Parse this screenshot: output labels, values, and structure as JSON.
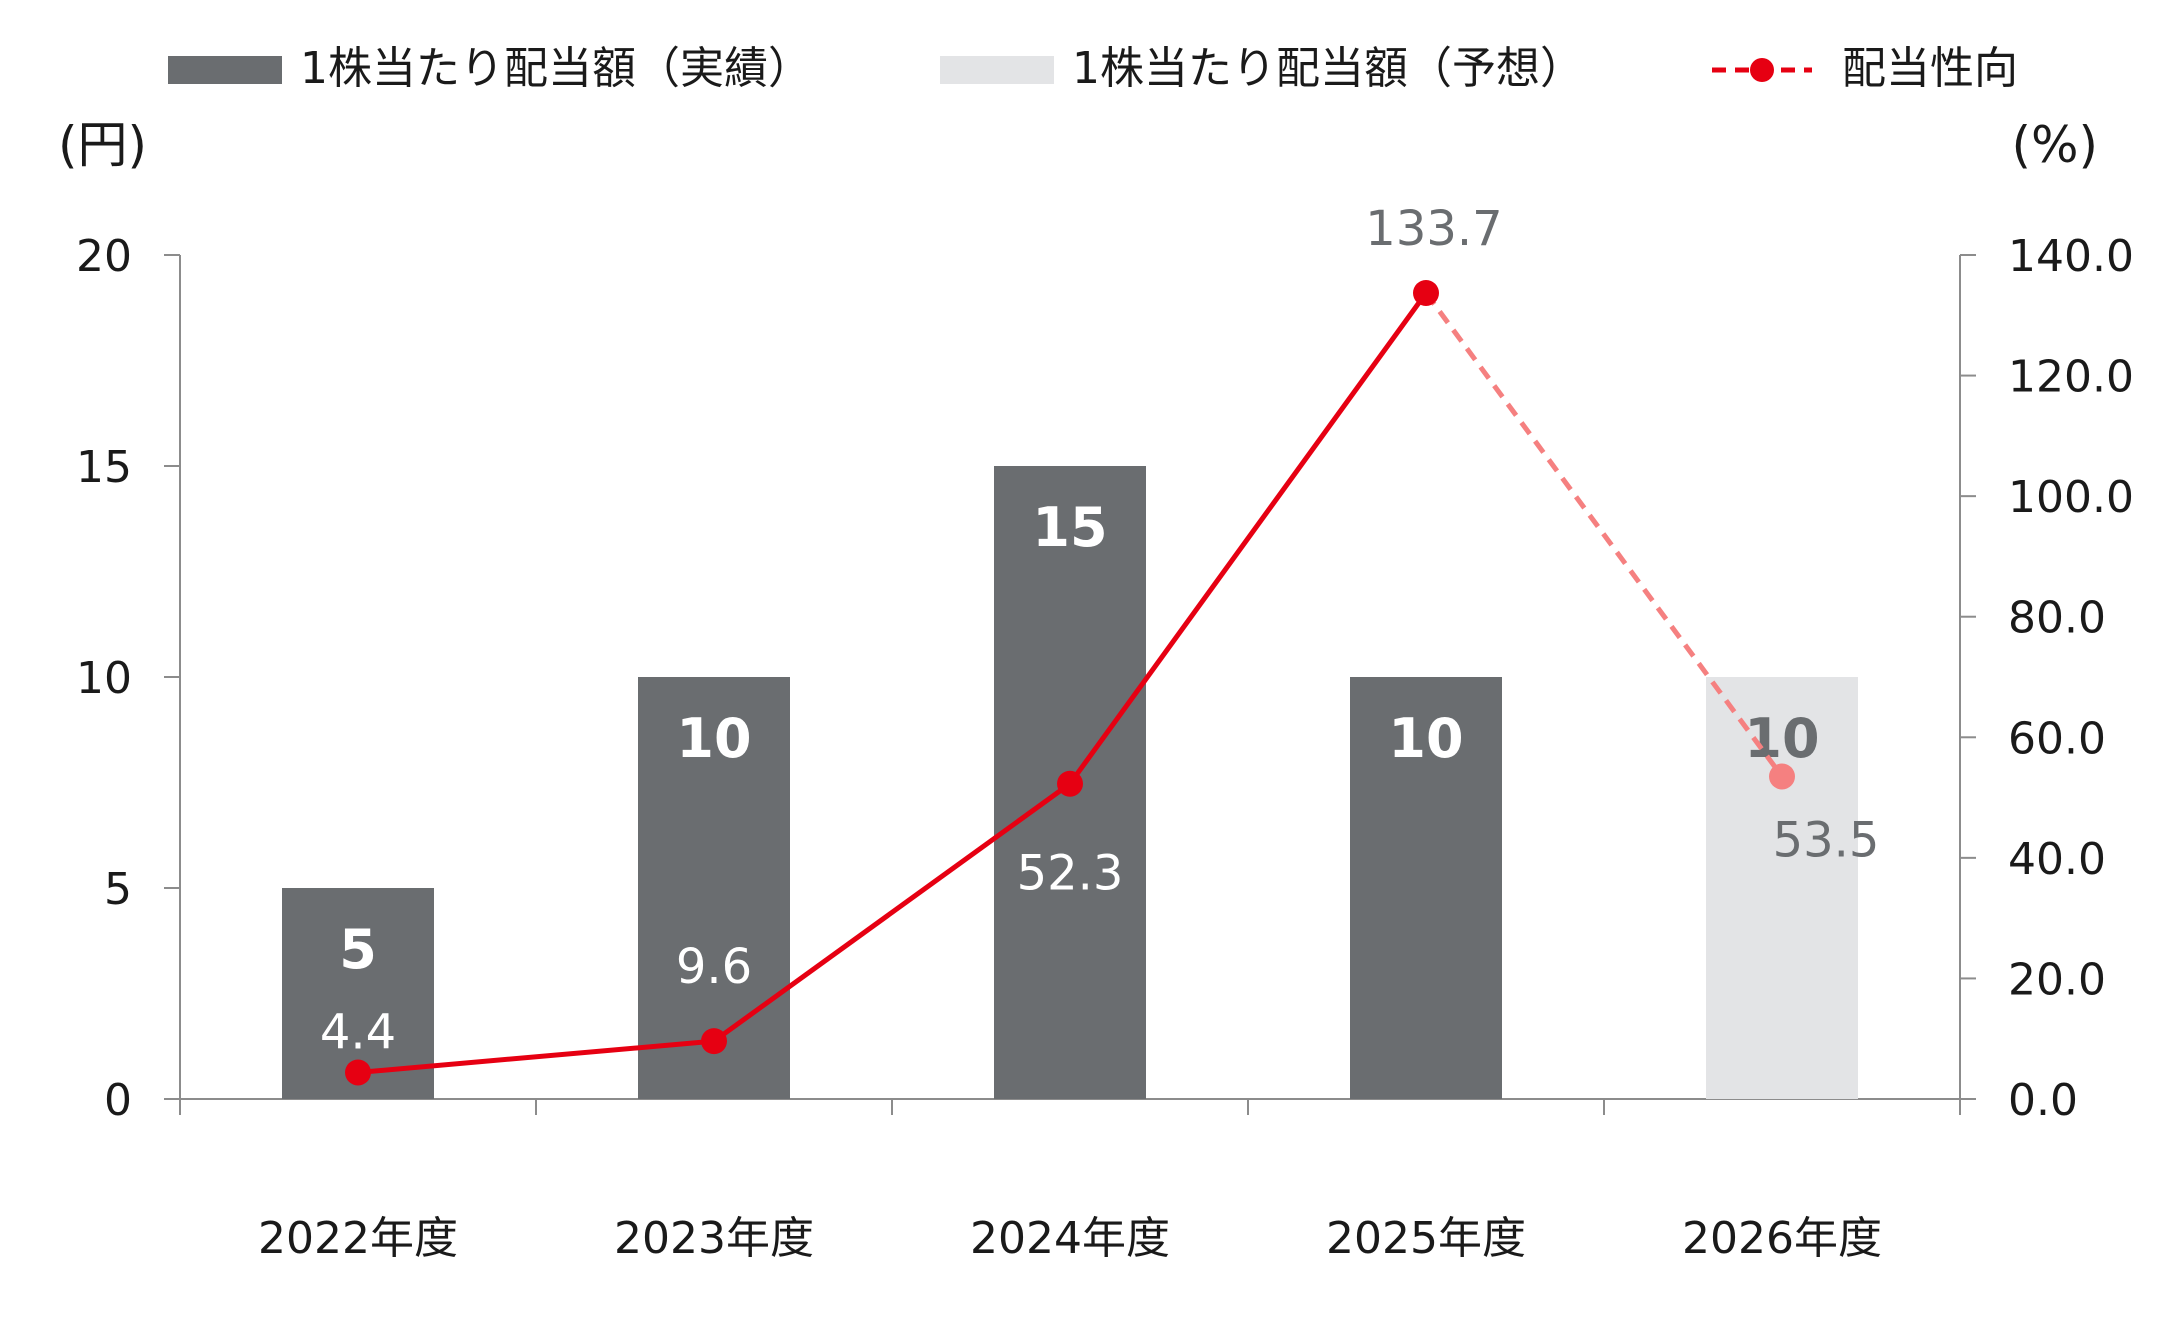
{
  "chart_data": {
    "type": "bar",
    "categories": [
      "2022年度",
      "2023年度",
      "2024年度",
      "2025年度",
      "2026年度"
    ],
    "series": [
      {
        "name": "1株当たり配当額（実績）",
        "type": "bar",
        "axis": "left",
        "values": [
          5,
          10,
          15,
          10,
          null
        ],
        "labels": [
          "5",
          "10",
          "15",
          "10",
          null
        ],
        "color": "#6a6d70"
      },
      {
        "name": "1株当たり配当額（予想）",
        "type": "bar",
        "axis": "left",
        "values": [
          null,
          null,
          null,
          null,
          10
        ],
        "labels": [
          null,
          null,
          null,
          null,
          "10"
        ],
        "color": "#e3e4e6"
      },
      {
        "name": "配当性向",
        "type": "line",
        "axis": "right",
        "values": [
          4.4,
          9.6,
          52.3,
          133.7,
          53.5
        ],
        "labels": [
          "4.4",
          "9.6",
          "52.3",
          "133.7",
          "53.5"
        ],
        "color": "#e60012",
        "forecast_color": "#f58080",
        "forecast_from_index": 3
      }
    ],
    "left_axis": {
      "title": "(円)",
      "ticks": [
        "0",
        "5",
        "10",
        "15",
        "20"
      ],
      "ylim": [
        0,
        20
      ]
    },
    "right_axis": {
      "title": "(%)",
      "ticks": [
        "0.0",
        "20.0",
        "40.0",
        "60.0",
        "80.0",
        "100.0",
        "120.0",
        "140.0"
      ],
      "ylim": [
        0,
        140
      ]
    },
    "grid": false,
    "legend_position": "top"
  }
}
